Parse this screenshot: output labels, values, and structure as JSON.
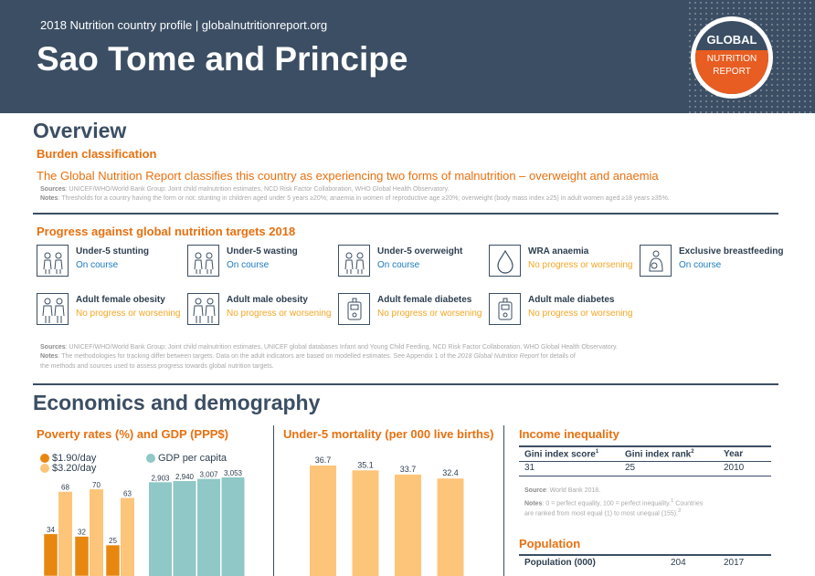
{
  "header": {
    "subtitle": "2018 Nutrition country profile  |  globalnutritionreport.org",
    "title": "Sao Tome and Principe",
    "logo_top": "GLOBAL",
    "logo_mid": "NUTRITION",
    "logo_bot": "REPORT"
  },
  "overview": {
    "heading": "Overview",
    "burden_heading": "Burden classification",
    "burden_text": "The Global Nutrition Report classifies this country as experiencing two forms of malnutrition – overweight and anaemia",
    "sources_label": "Sources",
    "sources_text": ": UNICEF/WHO/World Bank Group: Joint child malnutrition estimates, NCD Risk Factor Collaboration, WHO Global Health Observatory.",
    "notes_label": "Notes",
    "notes_text": ": Thresholds for a country having the form or not: stunting in children aged under 5 years ≥20%; anaemia in women of reproductive age ≥20%; overweight (body mass index ≥25) in adult women aged ≥18 years ≥35%."
  },
  "progress": {
    "heading": "Progress against global nutrition targets 2018",
    "targets": [
      {
        "name": "Under-5 stunting",
        "status": "On course",
        "icon": "children-icon"
      },
      {
        "name": "Under-5 wasting",
        "status": "On course",
        "icon": "children-icon"
      },
      {
        "name": "Under-5 overweight",
        "status": "On course",
        "icon": "children-icon"
      },
      {
        "name": "WRA anaemia",
        "status": "No progress or worsening",
        "icon": "blood-drop-icon"
      },
      {
        "name": "Exclusive breastfeeding",
        "status": "On course",
        "icon": "breastfeeding-icon"
      },
      {
        "name": "Adult female obesity",
        "status": "No progress or worsening",
        "icon": "adults-icon"
      },
      {
        "name": "Adult male obesity",
        "status": "No progress or worsening",
        "icon": "adults-icon"
      },
      {
        "name": "Adult female diabetes",
        "status": "No progress or worsening",
        "icon": "glucose-meter-icon"
      },
      {
        "name": "Adult male diabetes",
        "status": "No progress or worsening",
        "icon": "glucose-meter-icon"
      }
    ],
    "sources_label": "Sources",
    "sources_text": ": UNICEF/WHO/World Bank Group: Joint child malnutrition estimates, UNICEF global databases Infant and Young Child Feeding, NCD Risk Factor Collaboration, WHO Global Health Observatory.",
    "notes_label": "Notes",
    "notes_line1": ": The methodologies for tracking differ between targets. Data on the adult indicators are based on modelled estimates. See Appendix 1 of the ",
    "notes_italic": "2018 Global Nutrition Report",
    "notes_line1b": " for details of",
    "notes_line2": "the methods and sources used to assess progress towards global nutrition targets."
  },
  "colors": {
    "on_course": "#1a7abf",
    "no_progress": "#f5a623",
    "dark": "#3b4e63",
    "orange": "#e8700f",
    "orange_bar": "#e8870f",
    "light_orange_bar": "#fdc57a",
    "teal_bar": "#8fc8c6"
  },
  "economics": {
    "heading": "Economics and demography",
    "poverty_heading": "Poverty rates (%) and GDP (PPP$)",
    "mortality_heading": "Under-5 mortality (per 000 live births)",
    "inequality_heading": "Income inequality",
    "population_heading": "Population"
  },
  "chart_data": [
    {
      "type": "bar",
      "title": "Poverty rates (%) and GDP (PPP$)",
      "series": [
        {
          "name": "$1.90/day",
          "values": [
            34,
            32,
            25
          ]
        },
        {
          "name": "$3.20/day",
          "values": [
            68,
            70,
            63
          ]
        }
      ],
      "gdp_series": {
        "name": "GDP per capita",
        "values": [
          2903,
          2940,
          3007,
          3053
        ],
        "labels": [
          "2,903",
          "2,940",
          "3,007",
          "3,053"
        ]
      },
      "legend_position": "top-left"
    },
    {
      "type": "bar",
      "title": "Under-5 mortality (per 000 live births)",
      "values": [
        36.7,
        35.1,
        33.7,
        32.4
      ],
      "labels": [
        "36.7",
        "35.1",
        "33.7",
        "32.4"
      ]
    }
  ],
  "inequality": {
    "headers": [
      "Gini index score",
      "Gini index rank",
      "Year"
    ],
    "header_sups": [
      "1",
      "2",
      ""
    ],
    "row": [
      "31",
      "25",
      "2010"
    ],
    "source_label": "Source",
    "source_text": ": World Bank 2018.",
    "notes_label": "Notes",
    "notes_text": ": 0 = perfect equality, 100 = perfect inequality.",
    "notes_sup1": "1",
    "notes_text2": " Countries",
    "notes_line2": "are ranked from most equal (1) to most unequal (155).",
    "notes_sup2": "2"
  },
  "population": {
    "label": "Population (000)",
    "value": "204",
    "year": "2017"
  }
}
